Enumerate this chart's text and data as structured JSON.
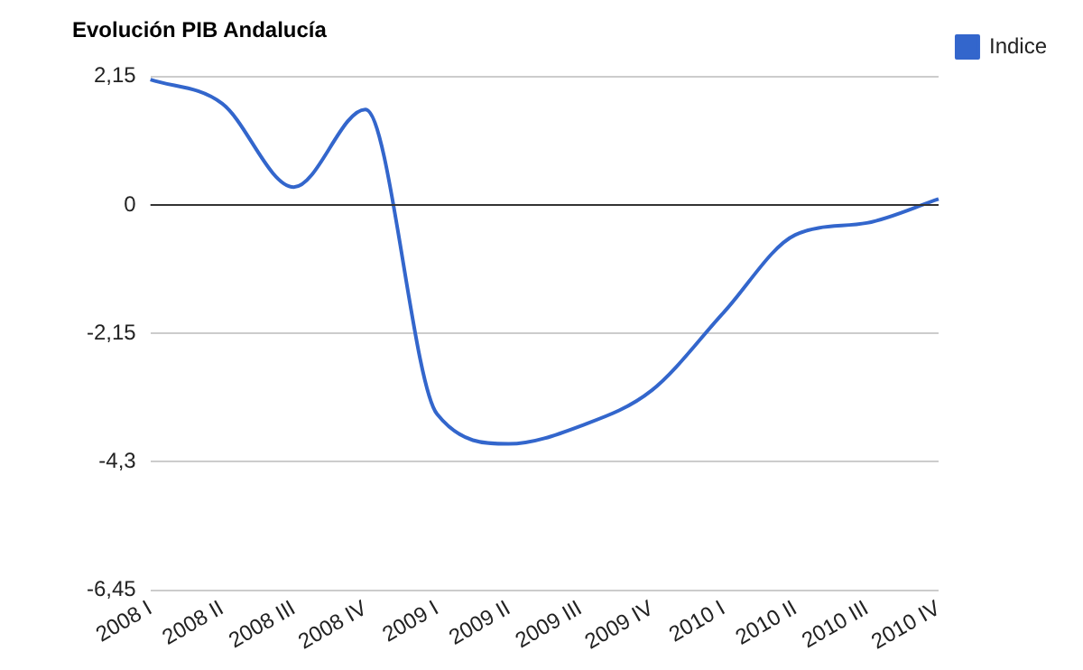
{
  "chart_data": {
    "type": "line",
    "title": "Evolución PIB Andalucía",
    "categories": [
      "2008 I",
      "2008 II",
      "2008 III",
      "2008 IV",
      "2009 I",
      "2009 II",
      "2009 III",
      "2009 IV",
      "2010 I",
      "2010 II",
      "2010 III",
      "2010 IV"
    ],
    "series": [
      {
        "name": "Indice",
        "color": "#3366cc",
        "values": [
          2.1,
          1.7,
          0.3,
          1.6,
          -3.5,
          -4.0,
          -3.7,
          -3.1,
          -1.8,
          -0.5,
          -0.3,
          0.1
        ]
      }
    ],
    "ylim": [
      -6.45,
      2.15
    ],
    "yticks": [
      {
        "value": -6.45,
        "label": "-6,45"
      },
      {
        "value": -4.3,
        "label": "-4,3"
      },
      {
        "value": -2.15,
        "label": "-2,15"
      },
      0,
      {
        "value": 2.15,
        "label": "2,15"
      }
    ],
    "ref_lines": [
      {
        "axis": "y",
        "value": 0,
        "color": "#333333"
      }
    ],
    "grid": "y",
    "legend": "right",
    "marker": "none",
    "line_style": "solid"
  }
}
